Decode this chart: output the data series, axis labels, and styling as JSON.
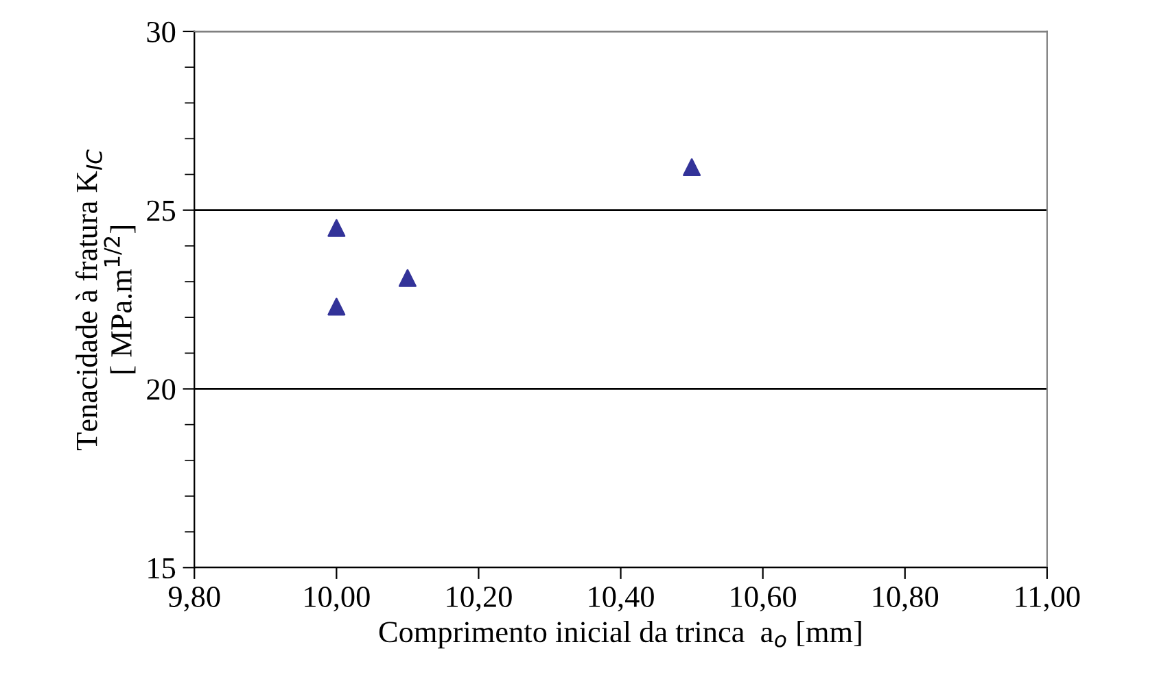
{
  "chart_data": {
    "type": "scatter",
    "xlabel": "Comprimento inicial da trinca  a$_{o}$ [mm]",
    "ylabel": "Tenacidade à fratura K$_{IC}$\n[ MPa.m$^{1/2}$]",
    "x": [
      10.0,
      10.0,
      10.1,
      10.5
    ],
    "series": [
      {
        "color": "#333399",
        "values": [
          24.5,
          22.3,
          23.1,
          26.2
        ]
      }
    ],
    "marker": "triangle",
    "xlim": [
      9.8,
      11.0
    ],
    "xticks": [
      {
        "value": 9.8,
        "label": "9,80"
      },
      {
        "value": 10.0,
        "label": "10,00"
      },
      {
        "value": 10.2,
        "label": "10,20"
      },
      {
        "value": 10.4,
        "label": "10,40"
      },
      {
        "value": 10.6,
        "label": "10,60"
      },
      {
        "value": 10.8,
        "label": "10,80"
      },
      {
        "value": 11.0,
        "label": "11,00"
      }
    ],
    "ylim": [
      15,
      30
    ],
    "yticks": [
      15,
      {
        "value": 16,
        "label": null
      },
      {
        "value": 17,
        "label": null
      },
      {
        "value": 18,
        "label": null
      },
      {
        "value": 19,
        "label": null
      },
      20,
      {
        "value": 21,
        "label": null
      },
      {
        "value": 22,
        "label": null
      },
      {
        "value": 23,
        "label": null
      },
      {
        "value": 24,
        "label": null
      },
      25,
      {
        "value": 26,
        "label": null
      },
      {
        "value": 27,
        "label": null
      },
      {
        "value": 28,
        "label": null
      },
      {
        "value": 29,
        "label": null
      },
      30
    ],
    "grid": "y"
  }
}
